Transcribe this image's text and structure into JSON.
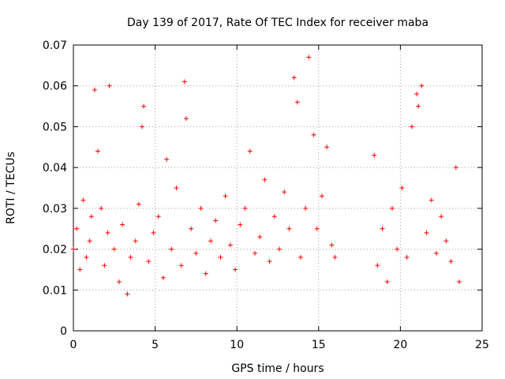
{
  "chart_data": {
    "type": "scatter",
    "title": "Day 139 of 2017, Rate Of TEC Index for receiver maba",
    "xlabel": "GPS time / hours",
    "ylabel": "ROTI / TECUs",
    "xlim": [
      0,
      25
    ],
    "ylim": [
      0,
      0.07
    ],
    "xticks": [
      0,
      5,
      10,
      15,
      20,
      25
    ],
    "xtick_labels": [
      "0",
      "5",
      "10",
      "15",
      "20",
      "25"
    ],
    "yticks": [
      0,
      0.01,
      0.02,
      0.03,
      0.04,
      0.05,
      0.06,
      0.07
    ],
    "ytick_labels": [
      "0",
      "0.01",
      "0.02",
      "0.03",
      "0.04",
      "0.05",
      "0.06",
      "0.07"
    ],
    "grid": true,
    "marker": "+",
    "color": "#ff0000",
    "series": [
      {
        "name": "ROTI",
        "x": [
          0.0,
          0.2,
          0.4,
          0.6,
          0.8,
          1.0,
          1.1,
          1.3,
          1.5,
          1.7,
          1.9,
          2.1,
          2.2,
          2.5,
          2.8,
          3.0,
          3.3,
          3.5,
          3.8,
          4.0,
          4.2,
          4.3,
          4.6,
          4.9,
          5.2,
          5.5,
          5.7,
          6.0,
          6.3,
          6.6,
          6.8,
          6.9,
          7.2,
          7.5,
          7.8,
          8.1,
          8.4,
          8.7,
          9.0,
          9.3,
          9.6,
          9.9,
          10.2,
          10.5,
          10.8,
          11.1,
          11.4,
          11.7,
          12.0,
          12.3,
          12.6,
          12.9,
          13.2,
          13.5,
          13.7,
          13.9,
          14.2,
          14.4,
          14.7,
          14.9,
          15.2,
          15.5,
          15.8,
          16.0,
          18.4,
          18.6,
          18.9,
          19.2,
          19.5,
          19.8,
          20.1,
          20.4,
          20.7,
          21.0,
          21.1,
          21.3,
          21.6,
          21.9,
          22.2,
          22.5,
          22.8,
          23.1,
          23.4,
          23.6
        ],
        "y": [
          0.02,
          0.025,
          0.015,
          0.032,
          0.018,
          0.022,
          0.028,
          0.059,
          0.044,
          0.03,
          0.016,
          0.024,
          0.06,
          0.02,
          0.012,
          0.026,
          0.009,
          0.018,
          0.022,
          0.031,
          0.05,
          0.055,
          0.017,
          0.024,
          0.028,
          0.013,
          0.042,
          0.02,
          0.035,
          0.016,
          0.061,
          0.052,
          0.025,
          0.019,
          0.03,
          0.014,
          0.022,
          0.027,
          0.018,
          0.033,
          0.021,
          0.015,
          0.026,
          0.03,
          0.044,
          0.019,
          0.023,
          0.037,
          0.017,
          0.028,
          0.02,
          0.034,
          0.025,
          0.062,
          0.056,
          0.018,
          0.03,
          0.067,
          0.048,
          0.025,
          0.033,
          0.045,
          0.021,
          0.018,
          0.043,
          0.016,
          0.025,
          0.012,
          0.03,
          0.02,
          0.035,
          0.018,
          0.05,
          0.058,
          0.055,
          0.06,
          0.024,
          0.032,
          0.019,
          0.028,
          0.022,
          0.017,
          0.04,
          0.012
        ]
      }
    ]
  }
}
